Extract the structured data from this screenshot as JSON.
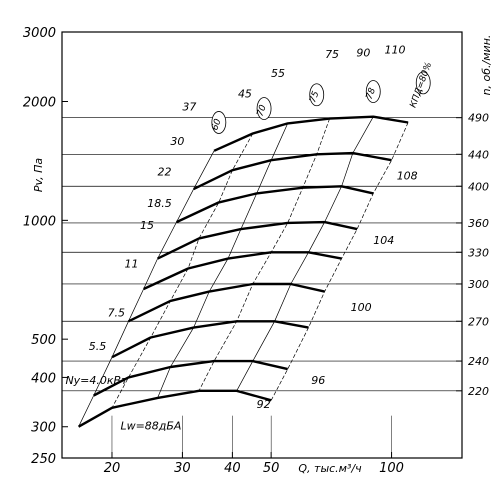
{
  "chart_data": {
    "type": "line",
    "title": "",
    "ylabel": "Pv, Па",
    "xlabel": "Q, тыс.м³/ч",
    "right_label": "n, об./мин.",
    "x_scale": "log",
    "y_scale": "log",
    "xlim": [
      15,
      150
    ],
    "ylim": [
      250,
      3000
    ],
    "x_ticks": [
      20,
      30,
      40,
      50,
      100
    ],
    "x_tick_labels": [
      "20",
      "30",
      "40",
      "50",
      "100"
    ],
    "y_ticks": [
      250,
      300,
      400,
      500,
      1000,
      2000,
      3000
    ],
    "y_tick_labels": [
      "250",
      "300",
      "400",
      "500",
      "1000",
      "2000",
      "3000"
    ],
    "rpm_ticks": [
      {
        "label": "490",
        "pv": 1820
      },
      {
        "label": "440",
        "pv": 1470
      },
      {
        "label": "400",
        "pv": 1220
      },
      {
        "label": "360",
        "pv": 985
      },
      {
        "label": "330",
        "pv": 830
      },
      {
        "label": "300",
        "pv": 690
      },
      {
        "label": "270",
        "pv": 555
      },
      {
        "label": "240",
        "pv": 440
      },
      {
        "label": "220",
        "pv": 370
      }
    ],
    "series": [
      {
        "rpm": 490,
        "points": [
          [
            36,
            1500
          ],
          [
            45,
            1660
          ],
          [
            55,
            1760
          ],
          [
            70,
            1810
          ],
          [
            90,
            1830
          ],
          [
            110,
            1770
          ]
        ]
      },
      {
        "rpm": 440,
        "points": [
          [
            32,
            1200
          ],
          [
            40,
            1340
          ],
          [
            50,
            1420
          ],
          [
            65,
            1470
          ],
          [
            80,
            1480
          ],
          [
            100,
            1420
          ]
        ]
      },
      {
        "rpm": 400,
        "points": [
          [
            29,
            990
          ],
          [
            37,
            1110
          ],
          [
            46,
            1170
          ],
          [
            60,
            1210
          ],
          [
            75,
            1220
          ],
          [
            90,
            1170
          ]
        ]
      },
      {
        "rpm": 360,
        "points": [
          [
            26,
            800
          ],
          [
            33,
            900
          ],
          [
            42,
            950
          ],
          [
            55,
            985
          ],
          [
            68,
            990
          ],
          [
            82,
            950
          ]
        ]
      },
      {
        "rpm": 330,
        "points": [
          [
            24,
            670
          ],
          [
            31,
            755
          ],
          [
            39,
            800
          ],
          [
            50,
            830
          ],
          [
            62,
            830
          ],
          [
            75,
            800
          ]
        ]
      },
      {
        "rpm": 300,
        "points": [
          [
            22,
            555
          ],
          [
            28,
            625
          ],
          [
            35,
            660
          ],
          [
            45,
            690
          ],
          [
            56,
            690
          ],
          [
            68,
            660
          ]
        ]
      },
      {
        "rpm": 270,
        "points": [
          [
            20,
            450
          ],
          [
            25,
            505
          ],
          [
            32,
            535
          ],
          [
            41,
            555
          ],
          [
            51,
            555
          ],
          [
            62,
            535
          ]
        ]
      },
      {
        "rpm": 240,
        "points": [
          [
            18,
            360
          ],
          [
            22,
            400
          ],
          [
            28,
            425
          ],
          [
            36,
            440
          ],
          [
            45,
            440
          ],
          [
            55,
            420
          ]
        ]
      },
      {
        "rpm": 220,
        "points": [
          [
            16.5,
            300
          ],
          [
            20,
            335
          ],
          [
            26,
            355
          ],
          [
            33,
            370
          ],
          [
            41,
            370
          ],
          [
            50,
            350
          ]
        ]
      }
    ],
    "power_labels": [
      {
        "label": "37",
        "q": 30,
        "pv": 1900
      },
      {
        "label": "30",
        "q": 28,
        "pv": 1550
      },
      {
        "label": "22",
        "q": 26,
        "pv": 1300
      },
      {
        "label": "18.5",
        "q": 24.5,
        "pv": 1080
      },
      {
        "label": "15",
        "q": 23.5,
        "pv": 950
      },
      {
        "label": "11",
        "q": 21.5,
        "pv": 760
      },
      {
        "label": "7.5",
        "q": 19.5,
        "pv": 570
      },
      {
        "label": "5.5",
        "q": 17.5,
        "pv": 470
      },
      {
        "label": "Ny=4.0кВт",
        "q": 15.3,
        "pv": 385
      }
    ],
    "noise_labels": [
      {
        "label": "108",
        "q": 103,
        "pv": 1270
      },
      {
        "label": "104",
        "q": 90,
        "pv": 870
      },
      {
        "label": "100",
        "q": 79,
        "pv": 590
      },
      {
        "label": "96",
        "q": 63,
        "pv": 385
      },
      {
        "label": "92",
        "q": 46,
        "pv": 335
      },
      {
        "label": "Lw=88дБА",
        "q": 21,
        "pv": 295
      }
    ],
    "efficiency_labels": [
      {
        "label": "60",
        "q": 37,
        "pv": 1770
      },
      {
        "label": "70",
        "q": 48,
        "pv": 1920
      },
      {
        "label": "75",
        "q": 65,
        "pv": 2080
      },
      {
        "label": "78",
        "q": 90,
        "pv": 2120
      },
      {
        "label": "КПД=80%",
        "q": 120,
        "pv": 2230
      }
    ],
    "flow_labels": [
      {
        "label": "45",
        "q": 43,
        "pv": 2050
      },
      {
        "label": "55",
        "q": 52,
        "pv": 2310
      },
      {
        "label": "75",
        "q": 71,
        "pv": 2580
      },
      {
        "label": "90",
        "q": 85,
        "pv": 2600
      },
      {
        "label": "110",
        "q": 102,
        "pv": 2650
      }
    ]
  }
}
